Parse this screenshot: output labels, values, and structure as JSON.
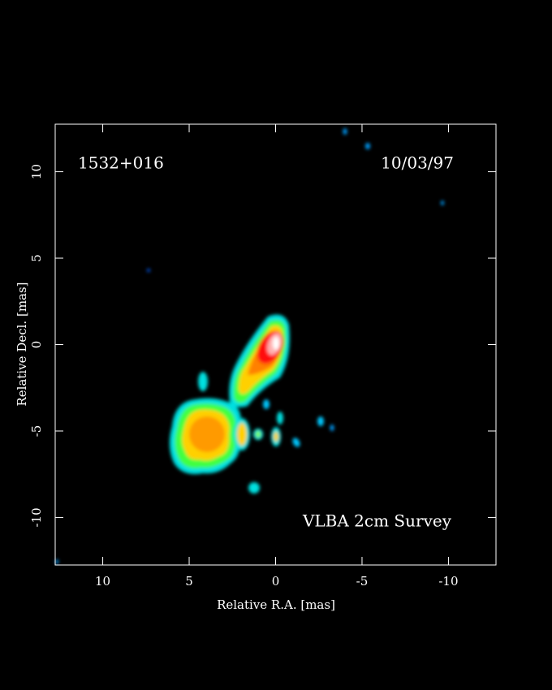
{
  "chart_data": {
    "type": "image",
    "title": "1532+016",
    "date": "10/03/97",
    "annotation": "VLBA 2cm Survey",
    "xlabel": "Relative R.A. [mas]",
    "ylabel": "Relative Decl. [mas]",
    "xlim": [
      12.75,
      -12.75
    ],
    "ylim": [
      -12.75,
      12.75
    ],
    "xticks": [
      10,
      5,
      0,
      -5,
      -10
    ],
    "yticks": [
      -10,
      -5,
      0,
      5,
      10
    ]
  }
}
